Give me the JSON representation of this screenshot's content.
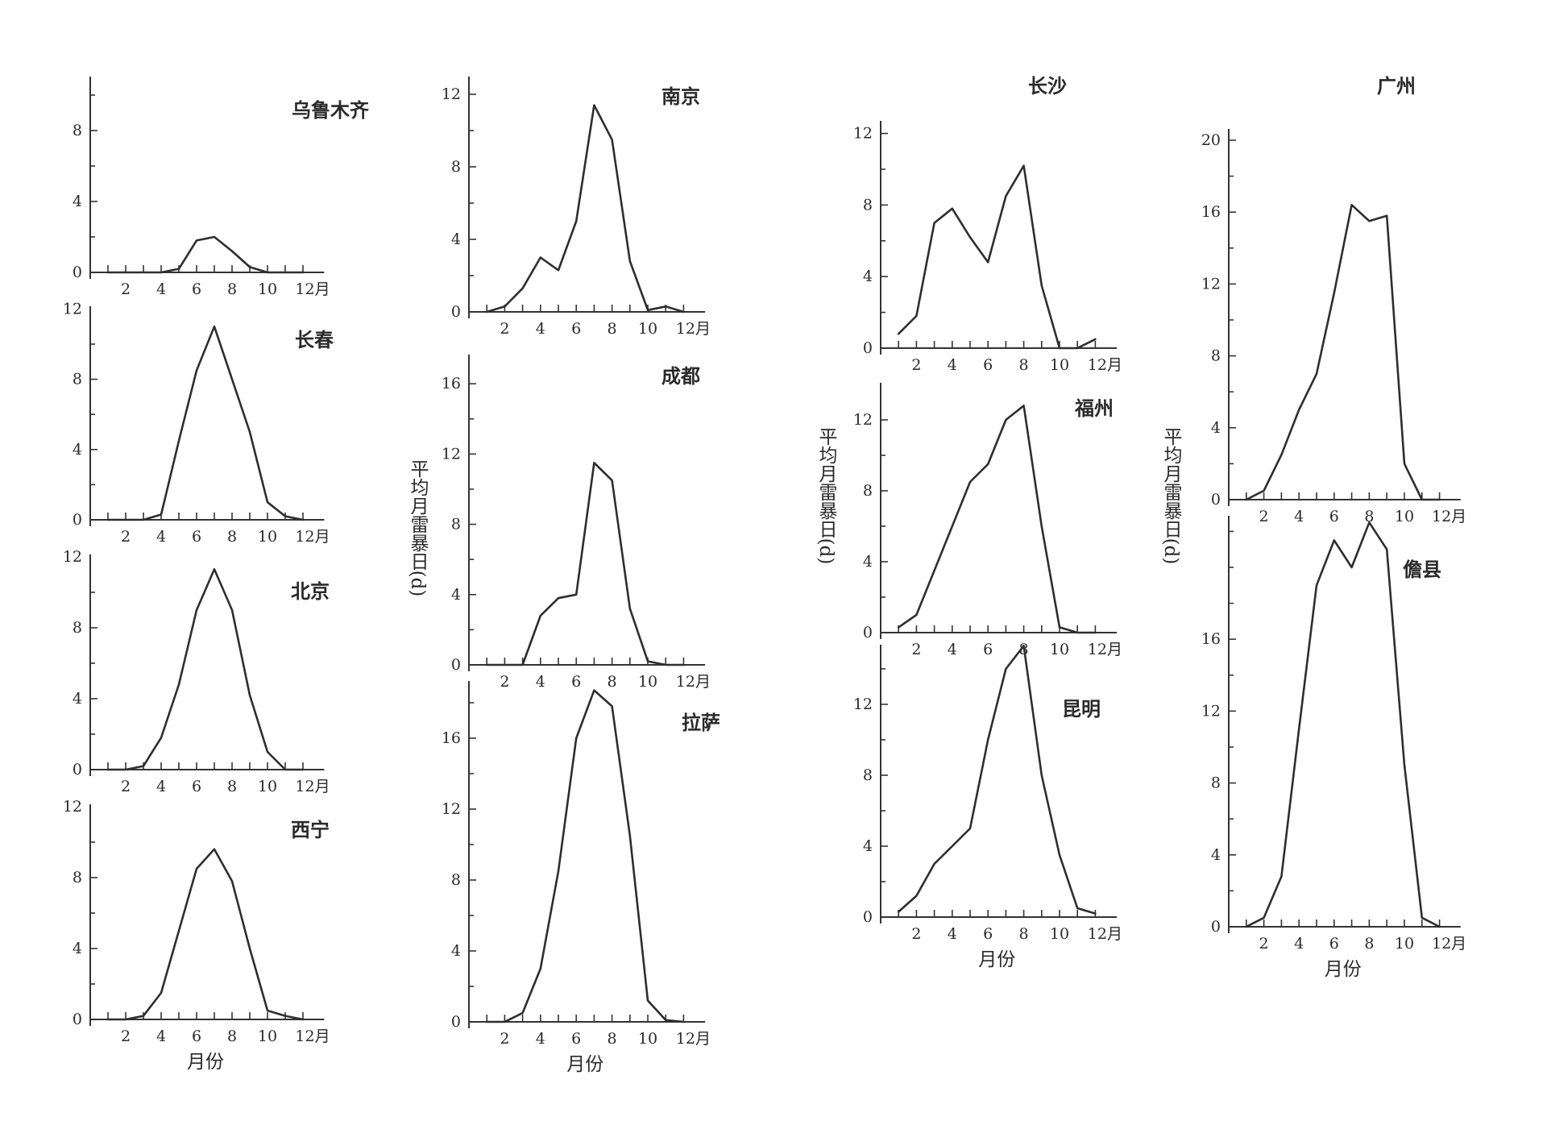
{
  "figure": {
    "ylabel": "平均月雷暴日(d)",
    "xlabel": "月份",
    "month_suffix": "月"
  },
  "chart_data": [
    {
      "type": "line",
      "title": "乌鲁木齐",
      "x": [
        1,
        2,
        3,
        4,
        5,
        6,
        7,
        8,
        9,
        10,
        11,
        12
      ],
      "values": [
        0,
        0,
        0,
        0,
        0.2,
        1.8,
        2.0,
        1.2,
        0.3,
        0,
        0,
        0
      ],
      "ylim": [
        0,
        11
      ],
      "yticks": [
        0,
        4,
        8
      ],
      "xticks": [
        2,
        4,
        6,
        8,
        10,
        12
      ],
      "xlabel": "",
      "ylabel": ""
    },
    {
      "type": "line",
      "title": "长春",
      "x": [
        1,
        2,
        3,
        4,
        5,
        6,
        7,
        8,
        9,
        10,
        11,
        12
      ],
      "values": [
        0,
        0,
        0,
        0.3,
        4.5,
        8.5,
        11.0,
        8.0,
        5.0,
        1.0,
        0.2,
        0
      ],
      "ylim": [
        0,
        12
      ],
      "yticks": [
        0,
        4,
        8,
        12
      ],
      "xticks": [
        2,
        4,
        6,
        8,
        10,
        12
      ],
      "xlabel": "",
      "ylabel": ""
    },
    {
      "type": "line",
      "title": "北京",
      "x": [
        1,
        2,
        3,
        4,
        5,
        6,
        7,
        8,
        9,
        10,
        11,
        12
      ],
      "values": [
        0,
        0,
        0.2,
        1.8,
        4.8,
        9.0,
        11.3,
        9.0,
        4.2,
        1.0,
        0,
        0
      ],
      "ylim": [
        0,
        12
      ],
      "yticks": [
        0,
        4,
        8,
        12
      ],
      "xticks": [
        2,
        4,
        6,
        8,
        10,
        12
      ],
      "xlabel": "",
      "ylabel": ""
    },
    {
      "type": "line",
      "title": "西宁",
      "x": [
        1,
        2,
        3,
        4,
        5,
        6,
        7,
        8,
        9,
        10,
        11,
        12
      ],
      "values": [
        0,
        0,
        0.2,
        1.5,
        5.0,
        8.5,
        9.6,
        7.8,
        4.0,
        0.5,
        0.2,
        0
      ],
      "ylim": [
        0,
        12
      ],
      "yticks": [
        0,
        4,
        8,
        12
      ],
      "xticks": [
        2,
        4,
        6,
        8,
        10,
        12
      ],
      "xlabel": "月份",
      "ylabel": ""
    },
    {
      "type": "line",
      "title": "南京",
      "x": [
        1,
        2,
        3,
        4,
        5,
        6,
        7,
        8,
        9,
        10,
        11,
        12
      ],
      "values": [
        0,
        0.3,
        1.3,
        3.0,
        2.3,
        5.0,
        11.4,
        9.5,
        2.8,
        0.1,
        0.3,
        0
      ],
      "ylim": [
        0,
        12
      ],
      "yticks": [
        0,
        4,
        8,
        12
      ],
      "xticks": [
        2,
        4,
        6,
        8,
        10,
        12
      ],
      "xlabel": "",
      "ylabel": ""
    },
    {
      "type": "line",
      "title": "成都",
      "x": [
        1,
        2,
        3,
        4,
        5,
        6,
        7,
        8,
        9,
        10,
        11,
        12
      ],
      "values": [
        0,
        0,
        0,
        2.8,
        3.8,
        4.0,
        11.5,
        10.5,
        3.2,
        0.2,
        0,
        0
      ],
      "ylim": [
        0,
        16
      ],
      "yticks": [
        0,
        4,
        8,
        12,
        16
      ],
      "xticks": [
        2,
        4,
        6,
        8,
        10,
        12
      ],
      "xlabel": "",
      "ylabel": ""
    },
    {
      "type": "line",
      "title": "拉萨",
      "x": [
        1,
        2,
        3,
        4,
        5,
        6,
        7,
        8,
        9,
        10,
        11,
        12
      ],
      "values": [
        0,
        0,
        0.5,
        3.0,
        8.5,
        16.0,
        18.7,
        17.8,
        10.5,
        1.2,
        0.1,
        0
      ],
      "ylim": [
        0,
        20
      ],
      "yticks": [
        0,
        4,
        8,
        12,
        16
      ],
      "xticks": [
        2,
        4,
        6,
        8,
        10,
        12
      ],
      "xlabel": "月份",
      "ylabel": ""
    },
    {
      "type": "line",
      "title": "长沙",
      "x": [
        1,
        2,
        3,
        4,
        5,
        6,
        7,
        8,
        9,
        10,
        11,
        12
      ],
      "values": [
        0.8,
        1.8,
        7.0,
        7.8,
        6.2,
        4.8,
        8.5,
        10.2,
        3.5,
        0,
        0,
        0.5
      ],
      "ylim": [
        0,
        12
      ],
      "yticks": [
        0,
        4,
        8,
        12
      ],
      "xticks": [
        2,
        4,
        6,
        8,
        10,
        12
      ],
      "xlabel": "",
      "ylabel": ""
    },
    {
      "type": "line",
      "title": "福州",
      "x": [
        1,
        2,
        3,
        4,
        5,
        6,
        7,
        8,
        9,
        10,
        11,
        12
      ],
      "values": [
        0.3,
        1.0,
        3.5,
        6.0,
        8.5,
        9.5,
        12.0,
        12.8,
        6.0,
        0.3,
        0,
        0
      ],
      "ylim": [
        0,
        12
      ],
      "yticks": [
        0,
        4,
        8,
        12
      ],
      "xticks": [
        2,
        4,
        6,
        8,
        10,
        12
      ],
      "xlabel": "",
      "ylabel": ""
    },
    {
      "type": "line",
      "title": "昆明",
      "x": [
        1,
        2,
        3,
        4,
        5,
        6,
        7,
        8,
        9,
        10,
        11,
        12
      ],
      "values": [
        0.3,
        1.2,
        3.0,
        4.0,
        5.0,
        10.0,
        14.0,
        15.3,
        8.0,
        3.5,
        0.5,
        0.2
      ],
      "ylim": [
        0,
        16
      ],
      "yticks": [
        0,
        4,
        8,
        12
      ],
      "xticks": [
        2,
        4,
        6,
        8,
        10,
        12
      ],
      "xlabel": "月份",
      "ylabel": ""
    },
    {
      "type": "line",
      "title": "广州",
      "x": [
        1,
        2,
        3,
        4,
        5,
        6,
        7,
        8,
        9,
        10,
        11,
        12
      ],
      "values": [
        0,
        0.5,
        2.5,
        5.0,
        7.0,
        11.5,
        16.4,
        15.5,
        15.8,
        2.0,
        0,
        0
      ],
      "ylim": [
        0,
        20
      ],
      "yticks": [
        0,
        4,
        8,
        12,
        16,
        20
      ],
      "xticks": [
        2,
        4,
        6,
        8,
        10,
        12
      ],
      "xlabel": "",
      "ylabel": ""
    },
    {
      "type": "line",
      "title": "儋县",
      "x": [
        1,
        2,
        3,
        4,
        5,
        6,
        7,
        8,
        9,
        10,
        11,
        12
      ],
      "values": [
        0,
        0.5,
        2.8,
        11.0,
        19.0,
        21.5,
        20.0,
        22.5,
        21.0,
        9.0,
        0.5,
        0
      ],
      "ylim": [
        0,
        23
      ],
      "yticks": [
        0,
        4,
        8,
        12,
        16
      ],
      "xticks": [
        2,
        4,
        6,
        8,
        10,
        12
      ],
      "xlabel": "月份",
      "ylabel": ""
    }
  ]
}
